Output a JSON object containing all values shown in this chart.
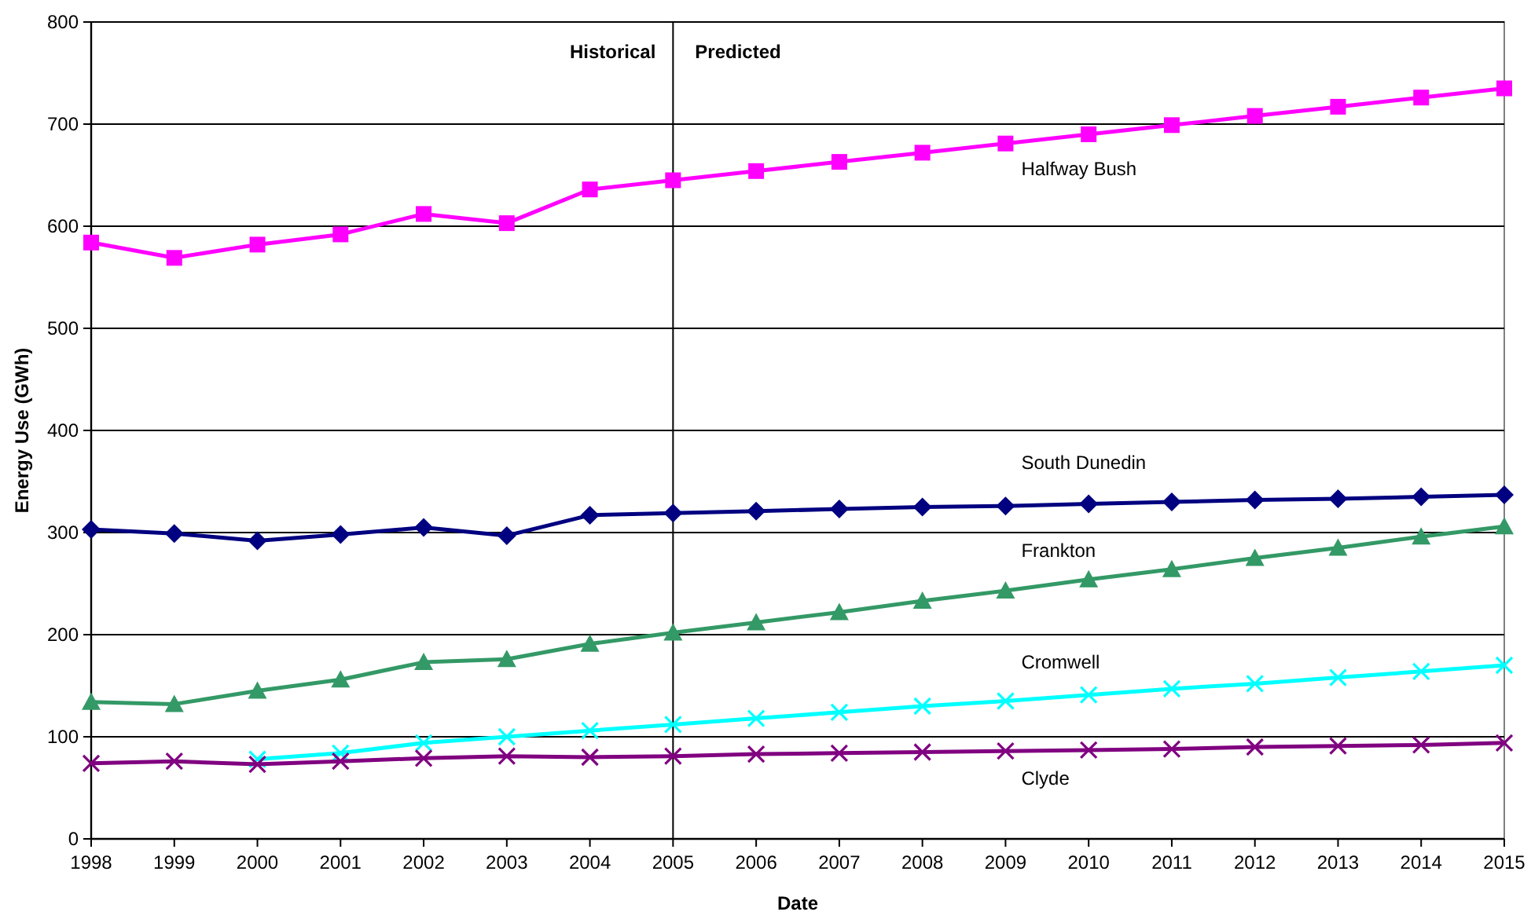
{
  "chart_data": {
    "type": "line",
    "xlabel": "Date",
    "ylabel": "Energy Use (GWh)",
    "x": [
      1998,
      1999,
      2000,
      2001,
      2002,
      2003,
      2004,
      2005,
      2006,
      2007,
      2008,
      2009,
      2010,
      2011,
      2012,
      2013,
      2014,
      2015
    ],
    "xlim": [
      1998,
      2015
    ],
    "xticks": [
      1998,
      1999,
      2000,
      2001,
      2002,
      2003,
      2004,
      2005,
      2006,
      2007,
      2008,
      2009,
      2010,
      2011,
      2012,
      2013,
      2014,
      2015
    ],
    "ylim": [
      0,
      800
    ],
    "yticks": [
      0,
      100,
      200,
      300,
      400,
      500,
      600,
      700,
      800
    ],
    "grid": "y",
    "ref_lines": [
      {
        "axis": "x",
        "value": 2005,
        "color": "#000000"
      }
    ],
    "annotations": [
      "Historical",
      "Predicted"
    ],
    "series": [
      {
        "name": "Halfway Bush",
        "color": "#ff00ff",
        "marker": "square",
        "values": [
          584,
          569,
          582,
          592,
          612,
          603,
          636,
          645,
          654,
          663,
          672,
          681,
          690,
          699,
          708,
          717,
          726,
          735
        ]
      },
      {
        "name": "South Dunedin",
        "color": "#000080",
        "marker": "diamond",
        "values": [
          303,
          299,
          292,
          298,
          305,
          297,
          317,
          319,
          321,
          323,
          325,
          326,
          328,
          330,
          332,
          333,
          335,
          337
        ]
      },
      {
        "name": "Frankton",
        "color": "#339966",
        "marker": "triangle",
        "values": [
          134,
          132,
          145,
          156,
          173,
          176,
          191,
          202,
          212,
          222,
          233,
          243,
          254,
          264,
          275,
          285,
          296,
          306
        ]
      },
      {
        "name": "Cromwell",
        "color": "#00ffff",
        "marker": "cross",
        "values": [
          null,
          null,
          78,
          84,
          94,
          100,
          106,
          112,
          118,
          124,
          130,
          135,
          141,
          147,
          152,
          158,
          164,
          170
        ]
      },
      {
        "name": "Clyde",
        "color": "#800080",
        "marker": "cross",
        "values": [
          74,
          76,
          73,
          76,
          79,
          81,
          80,
          81,
          83,
          84,
          85,
          86,
          87,
          88,
          90,
          91,
          92,
          94
        ]
      }
    ]
  }
}
